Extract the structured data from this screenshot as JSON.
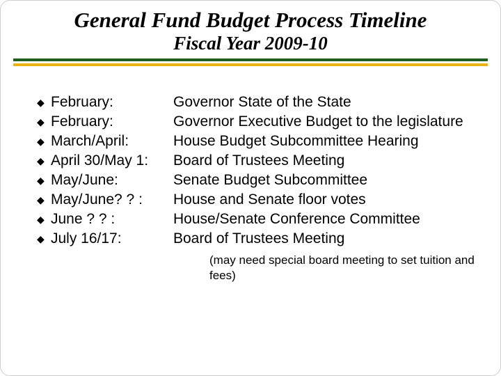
{
  "header": {
    "title": "General Fund Budget Process Timeline",
    "subtitle": "Fiscal Year 2009-10"
  },
  "colors": {
    "rule_top": "#1f5e1f",
    "rule_bottom": "#e9b515",
    "text": "#000000",
    "background": "#ffffff",
    "border": "#cfcfcf"
  },
  "typography": {
    "title_font": "Times New Roman",
    "title_size_pt": 24,
    "title_style": "bold italic",
    "body_font": "Arial",
    "body_size_pt": 16,
    "note_size_pt": 13
  },
  "bullet_glyph": "◆",
  "timeline": [
    {
      "date": "February:",
      "desc": "Governor State of the State"
    },
    {
      "date": "February:",
      "desc": "Governor Executive Budget to the legislature"
    },
    {
      "date": "March/April:",
      "desc": "House Budget Subcommittee Hearing"
    },
    {
      "date": "April 30/May 1:",
      "desc": "Board of Trustees Meeting"
    },
    {
      "date": "May/June:",
      "desc": "Senate Budget Subcommittee"
    },
    {
      "date": "May/June? ? :",
      "desc": "House and Senate floor votes"
    },
    {
      "date": "June ? ? :",
      "desc": "House/Senate Conference Committee"
    },
    {
      "date": "July 16/17:",
      "desc": "Board of Trustees Meeting"
    }
  ],
  "note": "(may need special board meeting to set tuition and fees)"
}
